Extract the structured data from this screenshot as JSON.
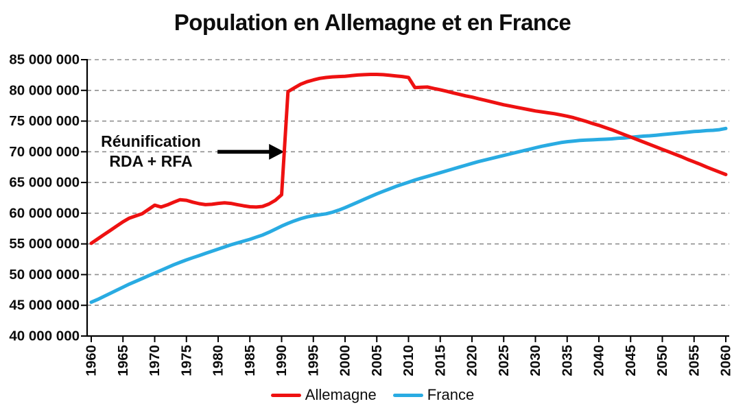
{
  "chart_data": {
    "type": "line",
    "title": "Population en Allemagne et en France",
    "xlabel": "",
    "ylabel": "",
    "xlim": [
      1960,
      2060
    ],
    "ylim_millions": [
      40,
      85
    ],
    "grid": "horizontal-dashed",
    "legend_position": "bottom",
    "value_unit": "habitants (axe en unités, points stockés en millions)",
    "x_ticks": [
      1960,
      1965,
      1970,
      1975,
      1980,
      1985,
      1990,
      1995,
      2000,
      2005,
      2010,
      2015,
      2020,
      2025,
      2030,
      2035,
      2040,
      2045,
      2050,
      2055,
      2060
    ],
    "y_ticks_millions": [
      85,
      80,
      75,
      70,
      65,
      60,
      55,
      50,
      45,
      40
    ],
    "y_tick_labels": [
      "85 000 000",
      "80 000 000",
      "75 000 000",
      "70 000 000",
      "65 000 000",
      "60 000 000",
      "55 000 000",
      "50 000 000",
      "45 000 000",
      "40 000 000"
    ],
    "annotation": {
      "text_line1": "Réunification",
      "text_line2": "RDA + RFA",
      "arrow": {
        "from_year": 1979.9,
        "to_year": 1990.4,
        "at_value_millions": 70
      }
    },
    "series": [
      {
        "name": "Allemagne",
        "color": "#ee1111",
        "points_year_millions": [
          [
            1960,
            55.1
          ],
          [
            1961,
            55.8
          ],
          [
            1962,
            56.5
          ],
          [
            1963,
            57.2
          ],
          [
            1964,
            57.9
          ],
          [
            1965,
            58.6
          ],
          [
            1966,
            59.2
          ],
          [
            1967,
            59.55
          ],
          [
            1968,
            59.9
          ],
          [
            1969,
            60.6
          ],
          [
            1970,
            61.3
          ],
          [
            1971,
            61.0
          ],
          [
            1972,
            61.35
          ],
          [
            1973,
            61.8
          ],
          [
            1974,
            62.2
          ],
          [
            1975,
            62.1
          ],
          [
            1976,
            61.8
          ],
          [
            1977,
            61.55
          ],
          [
            1978,
            61.4
          ],
          [
            1979,
            61.45
          ],
          [
            1980,
            61.6
          ],
          [
            1981,
            61.7
          ],
          [
            1982,
            61.6
          ],
          [
            1983,
            61.4
          ],
          [
            1984,
            61.2
          ],
          [
            1985,
            61.05
          ],
          [
            1986,
            61.0
          ],
          [
            1987,
            61.1
          ],
          [
            1988,
            61.5
          ],
          [
            1989,
            62.1
          ],
          [
            1990,
            63.0
          ],
          [
            1991,
            79.8
          ],
          [
            1992,
            80.4
          ],
          [
            1993,
            81.0
          ],
          [
            1994,
            81.4
          ],
          [
            1995,
            81.7
          ],
          [
            1996,
            81.95
          ],
          [
            1997,
            82.1
          ],
          [
            1998,
            82.2
          ],
          [
            1999,
            82.25
          ],
          [
            2000,
            82.3
          ],
          [
            2001,
            82.4
          ],
          [
            2002,
            82.5
          ],
          [
            2003,
            82.55
          ],
          [
            2004,
            82.6
          ],
          [
            2005,
            82.6
          ],
          [
            2006,
            82.55
          ],
          [
            2007,
            82.45
          ],
          [
            2008,
            82.35
          ],
          [
            2009,
            82.25
          ],
          [
            2010,
            82.1
          ],
          [
            2011,
            80.45
          ],
          [
            2012,
            80.5
          ],
          [
            2013,
            80.55
          ],
          [
            2014,
            80.3
          ],
          [
            2015,
            80.1
          ],
          [
            2016,
            79.85
          ],
          [
            2017,
            79.6
          ],
          [
            2018,
            79.35
          ],
          [
            2019,
            79.1
          ],
          [
            2020,
            78.9
          ],
          [
            2021,
            78.65
          ],
          [
            2022,
            78.4
          ],
          [
            2023,
            78.15
          ],
          [
            2024,
            77.9
          ],
          [
            2025,
            77.65
          ],
          [
            2026,
            77.45
          ],
          [
            2027,
            77.25
          ],
          [
            2028,
            77.05
          ],
          [
            2029,
            76.85
          ],
          [
            2030,
            76.65
          ],
          [
            2031,
            76.5
          ],
          [
            2032,
            76.35
          ],
          [
            2033,
            76.2
          ],
          [
            2034,
            76.0
          ],
          [
            2035,
            75.8
          ],
          [
            2036,
            75.55
          ],
          [
            2037,
            75.25
          ],
          [
            2038,
            74.95
          ],
          [
            2039,
            74.6
          ],
          [
            2040,
            74.3
          ],
          [
            2041,
            73.95
          ],
          [
            2042,
            73.6
          ],
          [
            2043,
            73.2
          ],
          [
            2044,
            72.8
          ],
          [
            2045,
            72.4
          ],
          [
            2046,
            72.0
          ],
          [
            2047,
            71.6
          ],
          [
            2048,
            71.2
          ],
          [
            2049,
            70.8
          ],
          [
            2050,
            70.4
          ],
          [
            2051,
            70.0
          ],
          [
            2052,
            69.6
          ],
          [
            2053,
            69.2
          ],
          [
            2054,
            68.75
          ],
          [
            2055,
            68.35
          ],
          [
            2056,
            67.95
          ],
          [
            2057,
            67.5
          ],
          [
            2058,
            67.1
          ],
          [
            2059,
            66.7
          ],
          [
            2060,
            66.3
          ]
        ]
      },
      {
        "name": "France",
        "color": "#29abe2",
        "points_year_millions": [
          [
            1960,
            45.5
          ],
          [
            1961,
            45.95
          ],
          [
            1962,
            46.45
          ],
          [
            1963,
            46.95
          ],
          [
            1964,
            47.45
          ],
          [
            1965,
            47.95
          ],
          [
            1966,
            48.45
          ],
          [
            1967,
            48.9
          ],
          [
            1968,
            49.35
          ],
          [
            1969,
            49.8
          ],
          [
            1970,
            50.25
          ],
          [
            1971,
            50.7
          ],
          [
            1972,
            51.15
          ],
          [
            1973,
            51.6
          ],
          [
            1974,
            52.0
          ],
          [
            1975,
            52.4
          ],
          [
            1976,
            52.75
          ],
          [
            1977,
            53.1
          ],
          [
            1978,
            53.45
          ],
          [
            1979,
            53.8
          ],
          [
            1980,
            54.15
          ],
          [
            1981,
            54.5
          ],
          [
            1982,
            54.85
          ],
          [
            1983,
            55.15
          ],
          [
            1984,
            55.45
          ],
          [
            1985,
            55.75
          ],
          [
            1986,
            56.1
          ],
          [
            1987,
            56.45
          ],
          [
            1988,
            56.9
          ],
          [
            1989,
            57.4
          ],
          [
            1990,
            57.9
          ],
          [
            1991,
            58.35
          ],
          [
            1992,
            58.75
          ],
          [
            1993,
            59.1
          ],
          [
            1994,
            59.4
          ],
          [
            1995,
            59.6
          ],
          [
            1996,
            59.75
          ],
          [
            1997,
            59.9
          ],
          [
            1998,
            60.15
          ],
          [
            1999,
            60.5
          ],
          [
            2000,
            60.9
          ],
          [
            2001,
            61.35
          ],
          [
            2002,
            61.8
          ],
          [
            2003,
            62.25
          ],
          [
            2004,
            62.7
          ],
          [
            2005,
            63.15
          ],
          [
            2006,
            63.55
          ],
          [
            2007,
            63.95
          ],
          [
            2008,
            64.35
          ],
          [
            2009,
            64.7
          ],
          [
            2010,
            65.05
          ],
          [
            2011,
            65.4
          ],
          [
            2012,
            65.7
          ],
          [
            2013,
            66.0
          ],
          [
            2014,
            66.3
          ],
          [
            2015,
            66.6
          ],
          [
            2016,
            66.9
          ],
          [
            2017,
            67.2
          ],
          [
            2018,
            67.5
          ],
          [
            2019,
            67.8
          ],
          [
            2020,
            68.1
          ],
          [
            2021,
            68.4
          ],
          [
            2022,
            68.65
          ],
          [
            2023,
            68.9
          ],
          [
            2024,
            69.15
          ],
          [
            2025,
            69.4
          ],
          [
            2026,
            69.65
          ],
          [
            2027,
            69.9
          ],
          [
            2028,
            70.15
          ],
          [
            2029,
            70.4
          ],
          [
            2030,
            70.65
          ],
          [
            2031,
            70.9
          ],
          [
            2032,
            71.1
          ],
          [
            2033,
            71.3
          ],
          [
            2034,
            71.5
          ],
          [
            2035,
            71.65
          ],
          [
            2036,
            71.75
          ],
          [
            2037,
            71.85
          ],
          [
            2038,
            71.9
          ],
          [
            2039,
            71.95
          ],
          [
            2040,
            72.0
          ],
          [
            2041,
            72.05
          ],
          [
            2042,
            72.1
          ],
          [
            2043,
            72.2
          ],
          [
            2044,
            72.25
          ],
          [
            2045,
            72.35
          ],
          [
            2046,
            72.45
          ],
          [
            2047,
            72.55
          ],
          [
            2048,
            72.6
          ],
          [
            2049,
            72.7
          ],
          [
            2050,
            72.8
          ],
          [
            2051,
            72.9
          ],
          [
            2052,
            73.0
          ],
          [
            2053,
            73.1
          ],
          [
            2054,
            73.2
          ],
          [
            2055,
            73.3
          ],
          [
            2056,
            73.35
          ],
          [
            2057,
            73.45
          ],
          [
            2058,
            73.5
          ],
          [
            2059,
            73.6
          ],
          [
            2060,
            73.8
          ]
        ]
      }
    ],
    "colors": {
      "allemagne_line": "#ee1111",
      "france_line": "#29abe2",
      "gridline": "#8f8f8f",
      "axis": "#000000",
      "text": "#0d0d0d",
      "background": "#ffffff"
    }
  }
}
